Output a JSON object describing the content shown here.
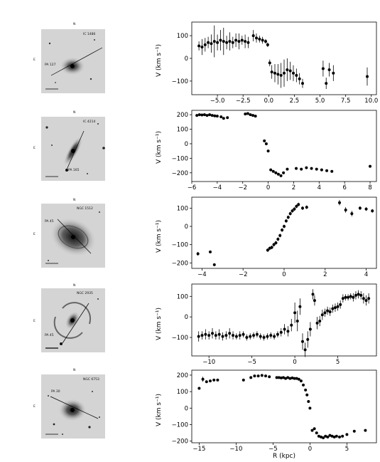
{
  "galaxies": [
    {
      "name": "IC 1486",
      "pa_label": "PA 127"
    },
    {
      "name": "IC 4214",
      "pa_label": "PA 165"
    },
    {
      "name": "NGC 1512",
      "pa_label": "PA 45"
    },
    {
      "name": "NGC 2935",
      "pa_label": "PA 45"
    },
    {
      "name": "NGC 6753",
      "pa_label": "PA 30"
    }
  ],
  "image_labels": {
    "north": "N",
    "east": "E"
  },
  "x_axis_label": "R (kpc)",
  "y_axis_label": "V (km s⁻¹)",
  "chart_data": [
    {
      "type": "scatter",
      "xlim": [
        -7.5,
        10.5
      ],
      "ylim": [
        -160,
        160
      ],
      "xticks": [
        -5.0,
        -2.5,
        0.0,
        2.5,
        5.0,
        7.5,
        10.0
      ],
      "xtick_labels": [
        "−5.0",
        "−2.5",
        "0.0",
        "2.5",
        "5.0",
        "7.5",
        "10.0"
      ],
      "yticks": [
        -100,
        0,
        100
      ],
      "ytick_labels": [
        "−100",
        "0",
        "100"
      ],
      "points": [
        {
          "x": -6.8,
          "y": 55,
          "err": 20
        },
        {
          "x": -6.5,
          "y": 50,
          "err": 35
        },
        {
          "x": -6.2,
          "y": 60,
          "err": 30
        },
        {
          "x": -5.9,
          "y": 70,
          "err": 25
        },
        {
          "x": -5.6,
          "y": 65,
          "err": 40
        },
        {
          "x": -5.3,
          "y": 75,
          "err": 70
        },
        {
          "x": -5.0,
          "y": 70,
          "err": 35
        },
        {
          "x": -4.7,
          "y": 80,
          "err": 45
        },
        {
          "x": -4.4,
          "y": 75,
          "err": 60
        },
        {
          "x": -4.1,
          "y": 70,
          "err": 30
        },
        {
          "x": -3.8,
          "y": 75,
          "err": 40
        },
        {
          "x": -3.5,
          "y": 70,
          "err": 25
        },
        {
          "x": -3.2,
          "y": 80,
          "err": 30
        },
        {
          "x": -2.9,
          "y": 75,
          "err": 35
        },
        {
          "x": -2.6,
          "y": 80,
          "err": 20
        },
        {
          "x": -2.3,
          "y": 75,
          "err": 30
        },
        {
          "x": -2.0,
          "y": 70,
          "err": 25
        },
        {
          "x": -1.5,
          "y": 100,
          "err": 25
        },
        {
          "x": -1.2,
          "y": 90,
          "err": 20
        },
        {
          "x": -0.9,
          "y": 85,
          "err": 15
        },
        {
          "x": -0.6,
          "y": 80,
          "err": 15
        },
        {
          "x": -0.3,
          "y": 75,
          "err": 10
        },
        {
          "x": -0.1,
          "y": 60,
          "err": 10
        },
        {
          "x": 0.1,
          "y": -20,
          "err": 15
        },
        {
          "x": 0.3,
          "y": -60,
          "err": 30
        },
        {
          "x": 0.6,
          "y": -65,
          "err": 40
        },
        {
          "x": 0.9,
          "y": -70,
          "err": 45
        },
        {
          "x": 1.2,
          "y": -75,
          "err": 55
        },
        {
          "x": 1.5,
          "y": -65,
          "err": 60
        },
        {
          "x": 1.8,
          "y": -50,
          "err": 50
        },
        {
          "x": 2.1,
          "y": -55,
          "err": 40
        },
        {
          "x": 2.4,
          "y": -65,
          "err": 35
        },
        {
          "x": 2.7,
          "y": -75,
          "err": 30
        },
        {
          "x": 3.0,
          "y": -90,
          "err": 25
        },
        {
          "x": 3.3,
          "y": -110,
          "err": 20
        },
        {
          "x": 5.3,
          "y": -45,
          "err": 35
        },
        {
          "x": 5.6,
          "y": -110,
          "err": 25
        },
        {
          "x": 5.9,
          "y": -50,
          "err": 30
        },
        {
          "x": 6.3,
          "y": -65,
          "err": 35
        },
        {
          "x": 9.6,
          "y": -80,
          "err": 40
        }
      ]
    },
    {
      "type": "scatter",
      "xlim": [
        -6,
        8.5
      ],
      "ylim": [
        -260,
        230
      ],
      "xticks": [
        -6,
        -4,
        -2,
        0,
        2,
        4,
        6,
        8
      ],
      "xtick_labels": [
        "−6",
        "−4",
        "−2",
        "0",
        "2",
        "4",
        "6",
        "8"
      ],
      "yticks": [
        -200,
        -100,
        0,
        100,
        200
      ],
      "ytick_labels": [
        "−200",
        "−100",
        "0",
        "100",
        "200"
      ],
      "points": [
        {
          "x": -5.6,
          "y": 195
        },
        {
          "x": -5.4,
          "y": 200
        },
        {
          "x": -5.2,
          "y": 198
        },
        {
          "x": -5.0,
          "y": 200
        },
        {
          "x": -4.8,
          "y": 195
        },
        {
          "x": -4.6,
          "y": 200
        },
        {
          "x": -4.4,
          "y": 195
        },
        {
          "x": -4.2,
          "y": 192
        },
        {
          "x": -4.0,
          "y": 190
        },
        {
          "x": -3.7,
          "y": 185
        },
        {
          "x": -3.5,
          "y": 175
        },
        {
          "x": -3.2,
          "y": 180
        },
        {
          "x": -1.8,
          "y": 205
        },
        {
          "x": -1.6,
          "y": 208
        },
        {
          "x": -1.4,
          "y": 200
        },
        {
          "x": -1.2,
          "y": 195
        },
        {
          "x": -1.0,
          "y": 190
        },
        {
          "x": -0.3,
          "y": 20
        },
        {
          "x": -0.15,
          "y": 0
        },
        {
          "x": 0.0,
          "y": -50
        },
        {
          "x": 0.2,
          "y": -180
        },
        {
          "x": 0.4,
          "y": -190
        },
        {
          "x": 0.6,
          "y": -200
        },
        {
          "x": 0.8,
          "y": -210
        },
        {
          "x": 1.0,
          "y": -220
        },
        {
          "x": 1.2,
          "y": -200
        },
        {
          "x": 1.5,
          "y": -175
        },
        {
          "x": 2.2,
          "y": -170
        },
        {
          "x": 2.6,
          "y": -175
        },
        {
          "x": 3.0,
          "y": -165
        },
        {
          "x": 3.4,
          "y": -170
        },
        {
          "x": 3.8,
          "y": -175
        },
        {
          "x": 4.2,
          "y": -180
        },
        {
          "x": 4.6,
          "y": -185
        },
        {
          "x": 5.0,
          "y": -190
        },
        {
          "x": 8.0,
          "y": -155
        }
      ]
    },
    {
      "type": "scatter",
      "xlim": [
        -4.5,
        4.5
      ],
      "ylim": [
        -230,
        160
      ],
      "xticks": [
        -4,
        -2,
        0,
        2,
        4
      ],
      "xtick_labels": [
        "−4",
        "−2",
        "0",
        "2",
        "4"
      ],
      "yticks": [
        -200,
        -100,
        0,
        100
      ],
      "ytick_labels": [
        "−200",
        "−100",
        "0",
        "100"
      ],
      "points": [
        {
          "x": -4.2,
          "y": -150,
          "err": 10
        },
        {
          "x": -3.6,
          "y": -140
        },
        {
          "x": -3.4,
          "y": -210
        },
        {
          "x": -0.8,
          "y": -130,
          "err": 10
        },
        {
          "x": -0.7,
          "y": -120,
          "err": 10
        },
        {
          "x": -0.6,
          "y": -115,
          "err": 10
        },
        {
          "x": -0.5,
          "y": -100,
          "err": 10
        },
        {
          "x": -0.4,
          "y": -90,
          "err": 10
        },
        {
          "x": -0.3,
          "y": -70,
          "err": 10
        },
        {
          "x": -0.2,
          "y": -50,
          "err": 10
        },
        {
          "x": -0.1,
          "y": -20,
          "err": 10
        },
        {
          "x": 0.0,
          "y": 0,
          "err": 10
        },
        {
          "x": 0.1,
          "y": 30,
          "err": 10
        },
        {
          "x": 0.2,
          "y": 50,
          "err": 10
        },
        {
          "x": 0.3,
          "y": 70,
          "err": 10
        },
        {
          "x": 0.4,
          "y": 85,
          "err": 10
        },
        {
          "x": 0.5,
          "y": 95,
          "err": 10
        },
        {
          "x": 0.6,
          "y": 110,
          "err": 10
        },
        {
          "x": 0.7,
          "y": 120,
          "err": 10
        },
        {
          "x": 0.9,
          "y": 100,
          "err": 10
        },
        {
          "x": 1.1,
          "y": 105,
          "err": 10
        },
        {
          "x": 2.7,
          "y": 130,
          "err": 15
        },
        {
          "x": 3.0,
          "y": 90,
          "err": 15
        },
        {
          "x": 3.3,
          "y": 70,
          "err": 15
        },
        {
          "x": 3.7,
          "y": 100,
          "err": 10
        },
        {
          "x": 4.0,
          "y": 95,
          "err": 10
        },
        {
          "x": 4.3,
          "y": 85,
          "err": 10
        }
      ]
    },
    {
      "type": "scatter",
      "xlim": [
        -12,
        9.5
      ],
      "ylim": [
        -190,
        160
      ],
      "xticks": [
        -10,
        -5,
        0,
        5
      ],
      "xtick_labels": [
        "−10",
        "−5",
        "0",
        "5"
      ],
      "yticks": [
        -100,
        0,
        100
      ],
      "ytick_labels": [
        "−100",
        "0",
        "100"
      ],
      "points": [
        {
          "x": -11.2,
          "y": -95,
          "err": 25
        },
        {
          "x": -10.8,
          "y": -90,
          "err": 20
        },
        {
          "x": -10.4,
          "y": -85,
          "err": 25
        },
        {
          "x": -10.0,
          "y": -90,
          "err": 20
        },
        {
          "x": -9.6,
          "y": -80,
          "err": 25
        },
        {
          "x": -9.2,
          "y": -90,
          "err": 20
        },
        {
          "x": -8.8,
          "y": -85,
          "err": 25
        },
        {
          "x": -8.4,
          "y": -95,
          "err": 20
        },
        {
          "x": -8.0,
          "y": -90,
          "err": 20
        },
        {
          "x": -7.6,
          "y": -80,
          "err": 25
        },
        {
          "x": -7.2,
          "y": -90,
          "err": 20
        },
        {
          "x": -6.8,
          "y": -95,
          "err": 15
        },
        {
          "x": -6.4,
          "y": -90,
          "err": 20
        },
        {
          "x": -6.0,
          "y": -85,
          "err": 15
        },
        {
          "x": -5.6,
          "y": -100,
          "err": 15
        },
        {
          "x": -5.2,
          "y": -95,
          "err": 15
        },
        {
          "x": -4.8,
          "y": -90,
          "err": 15
        },
        {
          "x": -4.4,
          "y": -85,
          "err": 15
        },
        {
          "x": -4.0,
          "y": -95,
          "err": 15
        },
        {
          "x": -3.6,
          "y": -100,
          "err": 15
        },
        {
          "x": -3.2,
          "y": -95,
          "err": 15
        },
        {
          "x": -2.8,
          "y": -90,
          "err": 15
        },
        {
          "x": -2.4,
          "y": -95,
          "err": 15
        },
        {
          "x": -2.0,
          "y": -85,
          "err": 15
        },
        {
          "x": -1.6,
          "y": -75,
          "err": 20
        },
        {
          "x": -1.2,
          "y": -60,
          "err": 25
        },
        {
          "x": -0.8,
          "y": -70,
          "err": 25
        },
        {
          "x": -0.4,
          "y": -40,
          "err": 30
        },
        {
          "x": 0.0,
          "y": 20,
          "err": 50
        },
        {
          "x": 0.3,
          "y": -20,
          "err": 50
        },
        {
          "x": 0.6,
          "y": 50,
          "err": 40
        },
        {
          "x": 0.9,
          "y": -120,
          "err": 40
        },
        {
          "x": 1.2,
          "y": -160,
          "err": 35
        },
        {
          "x": 1.5,
          "y": -110,
          "err": 40
        },
        {
          "x": 1.8,
          "y": -60,
          "err": 35
        },
        {
          "x": 2.1,
          "y": 110,
          "err": 25
        },
        {
          "x": 2.3,
          "y": 80,
          "err": 25
        },
        {
          "x": 2.6,
          "y": -30,
          "err": 30
        },
        {
          "x": 2.9,
          "y": -20,
          "err": 25
        },
        {
          "x": 3.2,
          "y": 10,
          "err": 25
        },
        {
          "x": 3.5,
          "y": 20,
          "err": 20
        },
        {
          "x": 3.8,
          "y": 30,
          "err": 20
        },
        {
          "x": 4.1,
          "y": 25,
          "err": 20
        },
        {
          "x": 4.4,
          "y": 40,
          "err": 20
        },
        {
          "x": 4.7,
          "y": 45,
          "err": 20
        },
        {
          "x": 5.0,
          "y": 50,
          "err": 20
        },
        {
          "x": 5.3,
          "y": 60,
          "err": 20
        },
        {
          "x": 5.6,
          "y": 90,
          "err": 20
        },
        {
          "x": 5.9,
          "y": 95,
          "err": 15
        },
        {
          "x": 6.2,
          "y": 95,
          "err": 15
        },
        {
          "x": 6.5,
          "y": 100,
          "err": 15
        },
        {
          "x": 6.8,
          "y": 95,
          "err": 20
        },
        {
          "x": 7.1,
          "y": 105,
          "err": 20
        },
        {
          "x": 7.4,
          "y": 110,
          "err": 20
        },
        {
          "x": 7.7,
          "y": 105,
          "err": 20
        },
        {
          "x": 8.0,
          "y": 90,
          "err": 25
        },
        {
          "x": 8.3,
          "y": 80,
          "err": 25
        },
        {
          "x": 8.6,
          "y": 90,
          "err": 25
        }
      ]
    },
    {
      "type": "scatter",
      "xlim": [
        -16,
        9
      ],
      "ylim": [
        -210,
        230
      ],
      "xticks": [
        -15,
        -10,
        -5,
        0,
        5
      ],
      "xtick_labels": [
        "−15",
        "−10",
        "−5",
        "0",
        "5"
      ],
      "yticks": [
        -200,
        -100,
        0,
        100,
        200
      ],
      "ytick_labels": [
        "−200",
        "−100",
        "0",
        "100",
        "200"
      ],
      "points": [
        {
          "x": -15.0,
          "y": 120
        },
        {
          "x": -14.5,
          "y": 175,
          "err": 15
        },
        {
          "x": -14.0,
          "y": 160
        },
        {
          "x": -13.5,
          "y": 165
        },
        {
          "x": -13.0,
          "y": 170
        },
        {
          "x": -12.5,
          "y": 170
        },
        {
          "x": -9.0,
          "y": 170
        },
        {
          "x": -8.0,
          "y": 185
        },
        {
          "x": -7.5,
          "y": 195
        },
        {
          "x": -7.0,
          "y": 195
        },
        {
          "x": -6.5,
          "y": 198
        },
        {
          "x": -6.0,
          "y": 195
        },
        {
          "x": -5.5,
          "y": 190
        },
        {
          "x": -4.5,
          "y": 185
        },
        {
          "x": -4.2,
          "y": 185
        },
        {
          "x": -3.9,
          "y": 183
        },
        {
          "x": -3.6,
          "y": 185
        },
        {
          "x": -3.3,
          "y": 180
        },
        {
          "x": -3.0,
          "y": 185
        },
        {
          "x": -2.7,
          "y": 180
        },
        {
          "x": -2.4,
          "y": 183
        },
        {
          "x": -2.1,
          "y": 180
        },
        {
          "x": -1.8,
          "y": 180
        },
        {
          "x": -1.5,
          "y": 175
        },
        {
          "x": -1.2,
          "y": 165
        },
        {
          "x": -0.9,
          "y": 140
        },
        {
          "x": -0.6,
          "y": 110
        },
        {
          "x": -0.4,
          "y": 80
        },
        {
          "x": -0.2,
          "y": 40
        },
        {
          "x": 0.0,
          "y": 0
        },
        {
          "x": 0.3,
          "y": -135
        },
        {
          "x": 0.6,
          "y": -125
        },
        {
          "x": 0.9,
          "y": -150
        },
        {
          "x": 1.2,
          "y": -170
        },
        {
          "x": 1.5,
          "y": -175
        },
        {
          "x": 1.8,
          "y": -180
        },
        {
          "x": 2.1,
          "y": -170
        },
        {
          "x": 2.4,
          "y": -175
        },
        {
          "x": 2.7,
          "y": -165
        },
        {
          "x": 3.0,
          "y": -170
        },
        {
          "x": 3.3,
          "y": -175
        },
        {
          "x": 3.6,
          "y": -170
        },
        {
          "x": 4.0,
          "y": -175
        },
        {
          "x": 4.4,
          "y": -170
        },
        {
          "x": 5.0,
          "y": -160
        },
        {
          "x": 6.0,
          "y": -140
        },
        {
          "x": 7.5,
          "y": -135
        }
      ]
    }
  ]
}
